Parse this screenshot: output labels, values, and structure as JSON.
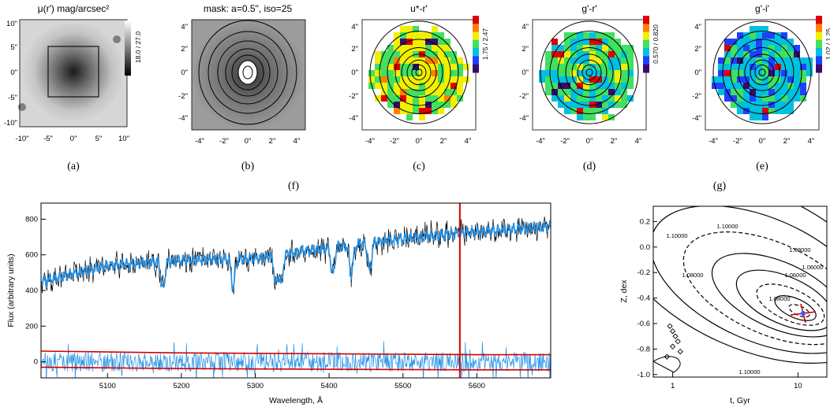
{
  "maps": [
    {
      "title": "μ(r') mag/arcsec²",
      "caption": "(a)",
      "ticks": [
        "10\"",
        "5\"",
        "0\"",
        "-5\"",
        "-10\""
      ],
      "xticks": [
        "-10\"",
        "-5\"",
        "0\"",
        "5\"",
        "10\""
      ],
      "colorbar": "18.0 / 27.0",
      "colorbar_colors": [
        "#ffffff",
        "#000000"
      ],
      "image_type": "grayscale surface brightness with central box"
    },
    {
      "title": "mask: a=0.5\", iso=25",
      "caption": "(b)",
      "ticks": [
        "4\"",
        "2\"",
        "0\"",
        "-2\"",
        "-4\""
      ],
      "xticks": [
        "-4\"",
        "-2\"",
        "0\"",
        "2\"",
        "4\""
      ],
      "image_type": "grayscale with isophote contours"
    },
    {
      "title": "u*-r'",
      "caption": "(c)",
      "ticks": [
        "4\"",
        "2\"",
        "0\"",
        "-2\"",
        "-4\""
      ],
      "xticks": [
        "-4\"",
        "-2\"",
        "0\"",
        "2\"",
        "4\""
      ],
      "colorbar": "1.75 / 2.47",
      "colorbar_colors": [
        "#3a0a6a",
        "#2040ff",
        "#00c0e0",
        "#40e060",
        "#f0f000",
        "#ff8000",
        "#e00000"
      ]
    },
    {
      "title": "g'-r'",
      "caption": "(d)",
      "ticks": [
        "4\"",
        "2\"",
        "0\"",
        "-2\"",
        "-4\""
      ],
      "xticks": [
        "-4\"",
        "-2\"",
        "0\"",
        "2\"",
        "4\""
      ],
      "colorbar": "0.570 / 0.820",
      "colorbar_colors": [
        "#3a0a6a",
        "#2040ff",
        "#00c0e0",
        "#40e060",
        "#f0f000",
        "#ff8000",
        "#e00000"
      ]
    },
    {
      "title": "g'-i'",
      "caption": "(e)",
      "ticks": [
        "4\"",
        "2\"",
        "0\"",
        "-2\"",
        "-4\""
      ],
      "xticks": [
        "-4\"",
        "-2\"",
        "0\"",
        "2\"",
        "4\""
      ],
      "colorbar": "1.02 / 1.25",
      "colorbar_colors": [
        "#3a0a6a",
        "#2040ff",
        "#00c0e0",
        "#40e060",
        "#f0f000",
        "#ff8000",
        "#e00000"
      ]
    }
  ],
  "captions_lower": {
    "f": "(f)",
    "g": "(g)"
  },
  "chart_data": [
    {
      "type": "line",
      "panel": "(f)",
      "xlabel": "Wavelength, Å",
      "ylabel": "Flux (arbitrary units)",
      "xlim": [
        5010,
        5700
      ],
      "ylim": [
        -90,
        890
      ],
      "xticks": [
        "5100",
        "5200",
        "5300",
        "5400",
        "5500",
        "5600"
      ],
      "xtick_values": [
        5100,
        5200,
        5300,
        5400,
        5500,
        5600
      ],
      "yticks": [
        "0",
        "200",
        "400",
        "600",
        "800"
      ],
      "ytick_values": [
        0,
        200,
        400,
        600,
        800
      ],
      "series": [
        {
          "color": "#000000",
          "kind": "observed spectrum",
          "trend_x": [
            5010,
            5100,
            5200,
            5300,
            5400,
            5500,
            5600,
            5700
          ],
          "trend_y": [
            450,
            540,
            570,
            580,
            640,
            690,
            730,
            760
          ]
        },
        {
          "color": "#1f8fe6",
          "kind": "model fit",
          "trend_x": [
            5010,
            5100,
            5200,
            5300,
            5400,
            5500,
            5600,
            5700
          ],
          "trend_y": [
            450,
            540,
            570,
            580,
            640,
            690,
            730,
            760
          ]
        },
        {
          "color": "#1f8fe6",
          "kind": "residuals",
          "center": 0,
          "spread": 110
        },
        {
          "color": "#d40000",
          "kind": "error envelope upper",
          "x": [
            5010,
            5200,
            5400,
            5600,
            5700
          ],
          "y": [
            60,
            50,
            45,
            40,
            40
          ]
        },
        {
          "color": "#d40000",
          "kind": "error envelope lower",
          "x": [
            5010,
            5200,
            5400,
            5600,
            5700
          ],
          "y": [
            -30,
            -38,
            -42,
            -45,
            -45
          ]
        }
      ],
      "vline": {
        "x": 5577,
        "color": "#d40000"
      }
    },
    {
      "type": "contour",
      "panel": "(g)",
      "xlabel": "t, Gyr",
      "ylabel": "Z, dex",
      "xscale": "log",
      "xlim": [
        0.7,
        17
      ],
      "ylim": [
        -1.02,
        0.32
      ],
      "xticks": [
        "1",
        "10"
      ],
      "xtick_values": [
        1,
        10
      ],
      "yticks": [
        "0.2",
        "0.0",
        "-0.2",
        "-0.4",
        "-0.6",
        "-0.8",
        "-1.0"
      ],
      "ytick_values": [
        0.2,
        0.0,
        -0.2,
        -0.4,
        -0.6,
        -0.8,
        -1.0
      ],
      "contour_labels": [
        "1.10000",
        "1.10000",
        "1.08000",
        "1.08000",
        "1.06000",
        "1.06000",
        "1.10000",
        "1.08000"
      ],
      "minimum": {
        "t": 11,
        "z": -0.52,
        "color": "#d40000"
      }
    }
  ]
}
